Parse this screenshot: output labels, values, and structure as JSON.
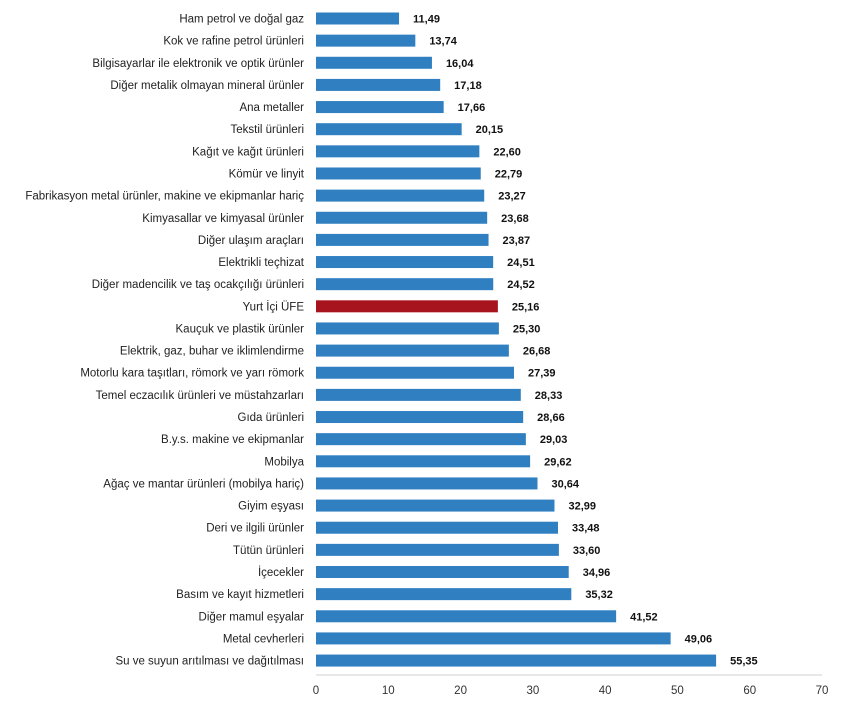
{
  "chart_data": {
    "type": "bar",
    "orientation": "horizontal",
    "categories": [
      "Ham petrol ve doğal gaz",
      "Kok ve rafine petrol ürünleri",
      "Bilgisayarlar ile elektronik ve optik ürünler",
      "Diğer metalik olmayan mineral ürünler",
      "Ana metaller",
      "Tekstil ürünleri",
      "Kağıt ve kağıt ürünleri",
      "Kömür ve linyit",
      "Fabrikasyon metal ürünler, makine ve ekipmanlar hariç",
      "Kimyasallar ve kimyasal ürünler",
      "Diğer ulaşım araçları",
      "Elektrikli teçhizat",
      "Diğer madencilik ve taş ocakçılığı ürünleri",
      "Yurt İçi ÜFE",
      "Kauçuk ve plastik ürünler",
      "Elektrik, gaz, buhar ve iklimlendirme",
      "Motorlu kara taşıtları, römork ve yarı römork",
      "Temel eczacılık ürünleri ve müstahzarları",
      "Gıda ürünleri",
      "B.y.s. makine ve ekipmanlar",
      "Mobilya",
      "Ağaç ve mantar ürünleri (mobilya hariç)",
      "Giyim eşyası",
      "Deri ve ilgili ürünler",
      "Tütün ürünleri",
      "İçecekler",
      "Basım ve kayıt hizmetleri",
      "Diğer mamul eşyalar",
      "Metal cevherleri",
      "Su ve suyun arıtılması ve dağıtılması"
    ],
    "values": [
      11.49,
      13.74,
      16.04,
      17.18,
      17.66,
      20.15,
      22.6,
      22.79,
      23.27,
      23.68,
      23.87,
      24.51,
      24.52,
      25.16,
      25.3,
      26.68,
      27.39,
      28.33,
      28.66,
      29.03,
      29.62,
      30.64,
      32.99,
      33.48,
      33.6,
      34.96,
      35.32,
      41.52,
      49.06,
      55.35
    ],
    "value_labels": [
      "11,49",
      "13,74",
      "16,04",
      "17,18",
      "17,66",
      "20,15",
      "22,60",
      "22,79",
      "23,27",
      "23,68",
      "23,87",
      "24,51",
      "24,52",
      "25,16",
      "25,30",
      "26,68",
      "27,39",
      "28,33",
      "28,66",
      "29,03",
      "29,62",
      "30,64",
      "32,99",
      "33,48",
      "33,60",
      "34,96",
      "35,32",
      "41,52",
      "49,06",
      "55,35"
    ],
    "highlight_category": "Yurt İçi ÜFE",
    "colors": {
      "bar": "#2f7fc1",
      "highlight": "#a8141d",
      "axis": "#d0d0d0"
    },
    "xlim": [
      0,
      70
    ],
    "xticks": [
      0,
      10,
      20,
      30,
      40,
      50,
      60,
      70
    ],
    "title": "",
    "xlabel": "",
    "ylabel": "",
    "grid": false,
    "legend": "none"
  }
}
